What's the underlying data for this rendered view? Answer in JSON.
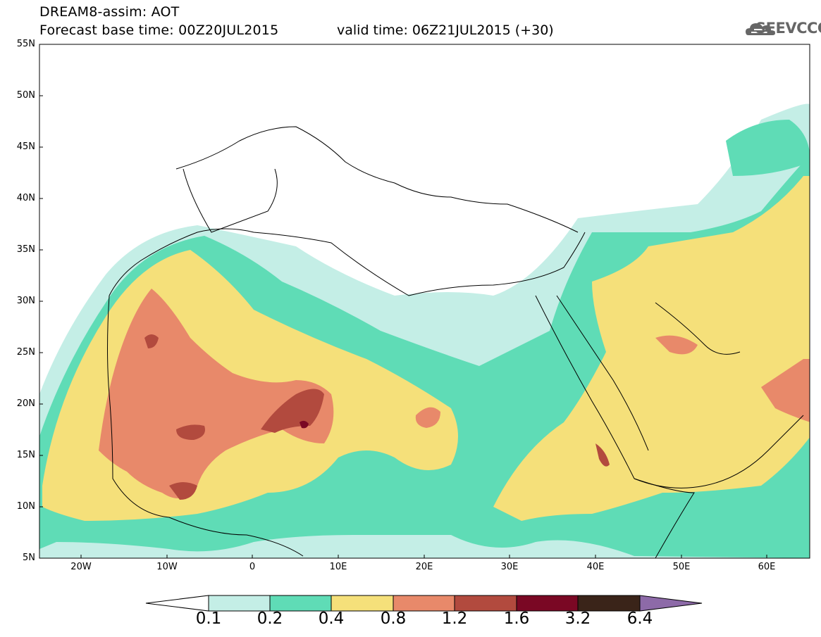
{
  "header": {
    "title": "DREAM8-assim: AOT",
    "base_time": "Forecast base time: 00Z20JUL2015",
    "valid_time": "valid time: 06Z21JUL2015 (+30)",
    "logo_text": "SEEVCCC",
    "logo_icon": "cloud-icon"
  },
  "axes": {
    "lat_labels": [
      "55N",
      "50N",
      "45N",
      "40N",
      "35N",
      "30N",
      "25N",
      "20N",
      "15N",
      "10N",
      "5N"
    ],
    "lon_labels": [
      "20W",
      "10W",
      "0",
      "10E",
      "20E",
      "30E",
      "40E",
      "50E",
      "60E"
    ]
  },
  "colorbar": {
    "labels": [
      "0.1",
      "0.2",
      "0.4",
      "0.8",
      "1.2",
      "1.6",
      "3.2",
      "6.4"
    ],
    "colors": [
      "#ffffff",
      "#c4eee6",
      "#5fdcb6",
      "#f5e07a",
      "#e8896a",
      "#b24a3e",
      "#7a0824",
      "#3a2419",
      "#8d6aa8"
    ]
  }
}
